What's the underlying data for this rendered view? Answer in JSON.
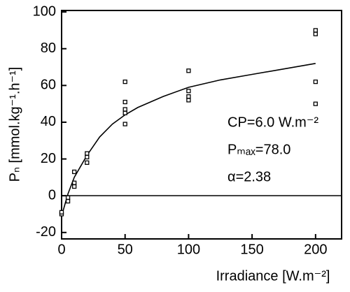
{
  "chart_data": {
    "type": "scatter",
    "x_label": "Irradiance [W.m⁻²]",
    "y_label": "Pₙ [mmol.kg⁻¹.h⁻¹]",
    "annotations": [
      "CP=6.0 W.m⁻²",
      "Pₘₐₓ=78.0",
      "α=2.38"
    ],
    "x": [
      0,
      0,
      5,
      5,
      10,
      10,
      10,
      20,
      20,
      20,
      50,
      50,
      50,
      50,
      50,
      100,
      100,
      100,
      100,
      200,
      200,
      200,
      200
    ],
    "values": [
      -10,
      -9,
      -3,
      -1,
      13,
      7,
      5,
      23,
      21,
      18,
      62,
      51,
      47,
      45,
      39,
      68,
      57,
      54,
      52,
      90,
      88,
      62,
      50
    ],
    "fit": {
      "x": [
        0,
        5,
        10,
        20,
        30,
        40,
        50,
        60,
        80,
        100,
        125,
        150,
        175,
        200
      ],
      "values": [
        -11,
        1,
        10,
        22,
        32,
        39,
        44,
        48,
        54,
        59,
        63,
        66,
        69,
        72
      ]
    },
    "hline": 0,
    "color": "#000000",
    "xlim": [
      0,
      220.5
    ],
    "ylim": [
      -23.5,
      100.8
    ],
    "xticks": [
      0,
      50,
      100,
      150,
      200
    ],
    "yticks": [
      -20,
      0,
      20,
      40,
      60,
      80,
      100
    ]
  }
}
